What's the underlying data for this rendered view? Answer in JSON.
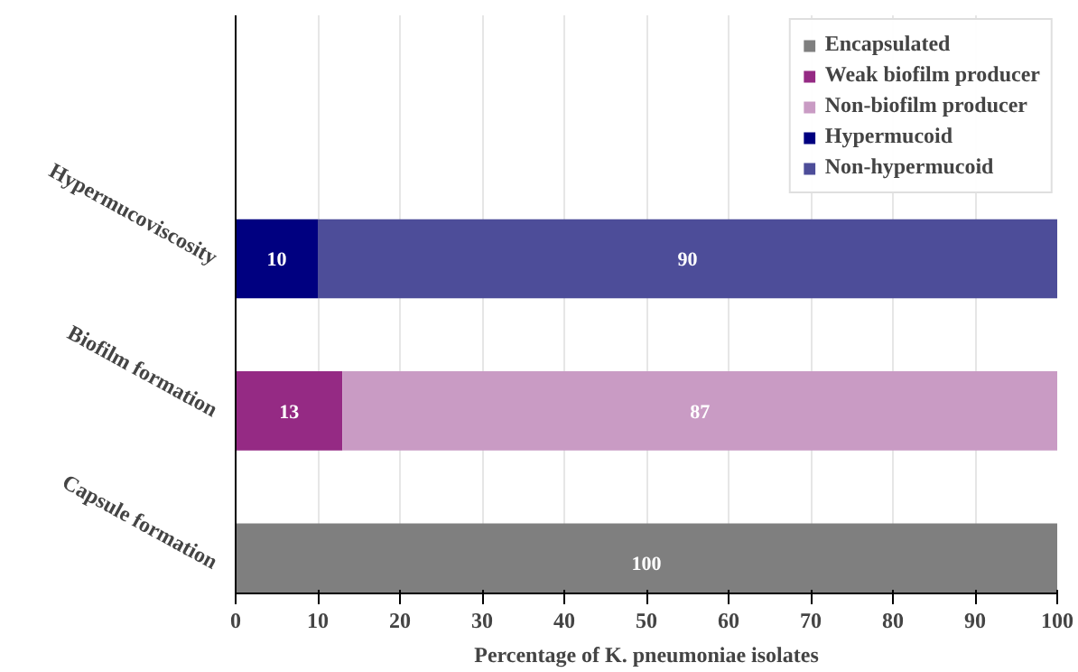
{
  "chart_data": {
    "type": "bar",
    "orientation": "horizontal",
    "stacked": true,
    "categories": [
      "Hypermucoviscosity",
      "Biofilm formation",
      "Capsule formation"
    ],
    "series": [
      {
        "name": "Encapsulated",
        "color": "#7f7f7f",
        "values": [
          null,
          null,
          100
        ]
      },
      {
        "name": "Weak biofilm producer",
        "color": "#952a84",
        "values": [
          null,
          13,
          null
        ]
      },
      {
        "name": "Non-biofilm producer",
        "color": "#c99bc4",
        "values": [
          null,
          87,
          null
        ]
      },
      {
        "name": "Hypermucoid",
        "color": "#000080",
        "values": [
          10,
          null,
          null
        ]
      },
      {
        "name": "Non-hypermucoid",
        "color": "#4d4d99",
        "values": [
          90,
          null,
          null
        ]
      }
    ],
    "xlabel": "Percentage of K. pneumoniae isolates",
    "xlim": [
      0,
      100
    ],
    "xticks": [
      0,
      10,
      20,
      30,
      40,
      50,
      60,
      70,
      80,
      90,
      100
    ],
    "grid": "x",
    "legend": "top right",
    "data_labels": true
  }
}
